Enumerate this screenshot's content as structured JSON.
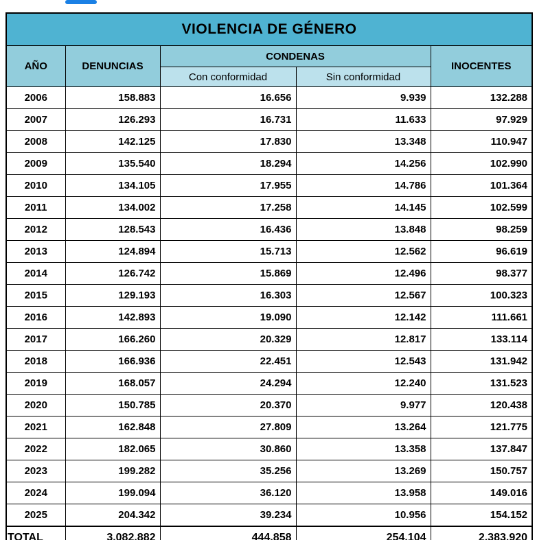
{
  "decor": {
    "tab_indicator_color": "#1a80e5"
  },
  "colors": {
    "title_bg": "#4fb3d2",
    "header_bg": "#92cddc",
    "subheader_bg": "#bce1ec",
    "border": "#000000",
    "text": "#000000"
  },
  "chart_data": {
    "type": "table",
    "title": "VIOLENCIA DE GÉNERO",
    "columns": {
      "year": "AÑO",
      "denuncias": "DENUNCIAS",
      "condenas_group": "CONDENAS",
      "con_conformidad": "Con conformidad",
      "sin_conformidad": "Sin conformidad",
      "inocentes": "INOCENTES"
    },
    "rows": [
      {
        "year": "2006",
        "denuncias": "158.883",
        "con_conformidad": "16.656",
        "sin_conformidad": "9.939",
        "inocentes": "132.288"
      },
      {
        "year": "2007",
        "denuncias": "126.293",
        "con_conformidad": "16.731",
        "sin_conformidad": "11.633",
        "inocentes": "97.929"
      },
      {
        "year": "2008",
        "denuncias": "142.125",
        "con_conformidad": "17.830",
        "sin_conformidad": "13.348",
        "inocentes": "110.947"
      },
      {
        "year": "2009",
        "denuncias": "135.540",
        "con_conformidad": "18.294",
        "sin_conformidad": "14.256",
        "inocentes": "102.990"
      },
      {
        "year": "2010",
        "denuncias": "134.105",
        "con_conformidad": "17.955",
        "sin_conformidad": "14.786",
        "inocentes": "101.364"
      },
      {
        "year": "2011",
        "denuncias": "134.002",
        "con_conformidad": "17.258",
        "sin_conformidad": "14.145",
        "inocentes": "102.599"
      },
      {
        "year": "2012",
        "denuncias": "128.543",
        "con_conformidad": "16.436",
        "sin_conformidad": "13.848",
        "inocentes": "98.259"
      },
      {
        "year": "2013",
        "denuncias": "124.894",
        "con_conformidad": "15.713",
        "sin_conformidad": "12.562",
        "inocentes": "96.619"
      },
      {
        "year": "2014",
        "denuncias": "126.742",
        "con_conformidad": "15.869",
        "sin_conformidad": "12.496",
        "inocentes": "98.377"
      },
      {
        "year": "2015",
        "denuncias": "129.193",
        "con_conformidad": "16.303",
        "sin_conformidad": "12.567",
        "inocentes": "100.323"
      },
      {
        "year": "2016",
        "denuncias": "142.893",
        "con_conformidad": "19.090",
        "sin_conformidad": "12.142",
        "inocentes": "111.661"
      },
      {
        "year": "2017",
        "denuncias": "166.260",
        "con_conformidad": "20.329",
        "sin_conformidad": "12.817",
        "inocentes": "133.114"
      },
      {
        "year": "2018",
        "denuncias": "166.936",
        "con_conformidad": "22.451",
        "sin_conformidad": "12.543",
        "inocentes": "131.942"
      },
      {
        "year": "2019",
        "denuncias": "168.057",
        "con_conformidad": "24.294",
        "sin_conformidad": "12.240",
        "inocentes": "131.523"
      },
      {
        "year": "2020",
        "denuncias": "150.785",
        "con_conformidad": "20.370",
        "sin_conformidad": "9.977",
        "inocentes": "120.438"
      },
      {
        "year": "2021",
        "denuncias": "162.848",
        "con_conformidad": "27.809",
        "sin_conformidad": "13.264",
        "inocentes": "121.775"
      },
      {
        "year": "2022",
        "denuncias": "182.065",
        "con_conformidad": "30.860",
        "sin_conformidad": "13.358",
        "inocentes": "137.847"
      },
      {
        "year": "2023",
        "denuncias": "199.282",
        "con_conformidad": "35.256",
        "sin_conformidad": "13.269",
        "inocentes": "150.757"
      },
      {
        "year": "2024",
        "denuncias": "199.094",
        "con_conformidad": "36.120",
        "sin_conformidad": "13.958",
        "inocentes": "149.016"
      },
      {
        "year": "2025",
        "denuncias": "204.342",
        "con_conformidad": "39.234",
        "sin_conformidad": "10.956",
        "inocentes": "154.152"
      }
    ],
    "total": {
      "label": "TOTAL",
      "denuncias": "3.082.882",
      "con_conformidad": "444.858",
      "sin_conformidad": "254.104",
      "inocentes": "2.383.920"
    }
  }
}
